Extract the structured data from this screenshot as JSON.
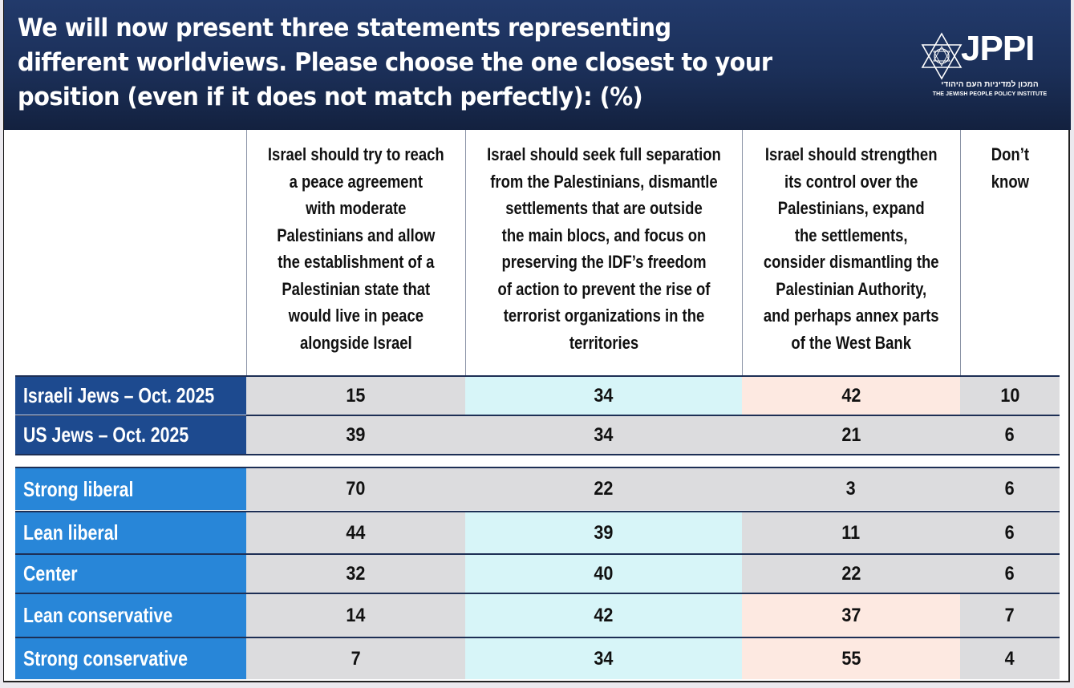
{
  "header": {
    "title": "We will now present three statements representing different worldviews. Please choose the one closest to your position (even if it does not match perfectly): (%)",
    "logo": {
      "icon": "star-of-david-icon",
      "name": "JPPI",
      "hebrew": "המכון למדיניות העם היהודי",
      "english": "THE JEWISH PEOPLE POLICY INSTITUTE"
    }
  },
  "colors": {
    "header_bg": "#1b2f58",
    "group_label_bg": "#1d4a8f",
    "ideology_label_bg": "#2886d8",
    "cell_gray": "#dcdcde",
    "cell_cyan": "#d7f5f8",
    "cell_peach": "#fde9e1"
  },
  "chart_data": {
    "type": "table",
    "title": "We will now present three statements representing different worldviews. Please choose the one closest to your position (even if it does not match perfectly): (%)",
    "columns": [
      "Israel should try to reach a peace agreement with moderate Palestinians and allow the establishment of a Palestinian state that would live in peace alongside Israel",
      "Israel should seek full separation from the Palestinians, dismantle settlements that are outside the main blocs, and focus on preserving the IDF’s freedom of action to prevent the rise of terrorist organizations in the territories",
      "Israel should strengthen its control over the Palestinians, expand the settlements, consider dismantling the Palestinian Authority, and perhaps annex parts of the West Bank",
      "Don’t know"
    ],
    "rows": [
      {
        "label": "Israeli Jews – Oct. 2025",
        "group": "population",
        "values": [
          15,
          34,
          42,
          10
        ],
        "highlight": [
          "gray",
          "cyan",
          "peach",
          "gray"
        ]
      },
      {
        "label": "US Jews – Oct. 2025",
        "group": "population",
        "values": [
          39,
          34,
          21,
          6
        ],
        "highlight": [
          "gray",
          "gray",
          "gray",
          "gray"
        ]
      },
      {
        "label": "Strong liberal",
        "group": "ideology",
        "values": [
          70,
          22,
          3,
          6
        ],
        "highlight": [
          "gray",
          "gray",
          "gray",
          "gray"
        ]
      },
      {
        "label": "Lean liberal",
        "group": "ideology",
        "values": [
          44,
          39,
          11,
          6
        ],
        "highlight": [
          "gray",
          "cyan",
          "gray",
          "gray"
        ]
      },
      {
        "label": "Center",
        "group": "ideology",
        "values": [
          32,
          40,
          22,
          6
        ],
        "highlight": [
          "gray",
          "cyan",
          "gray",
          "gray"
        ]
      },
      {
        "label": "Lean conservative",
        "group": "ideology",
        "values": [
          14,
          42,
          37,
          7
        ],
        "highlight": [
          "gray",
          "cyan",
          "peach",
          "gray"
        ]
      },
      {
        "label": "Strong conservative",
        "group": "ideology",
        "values": [
          7,
          34,
          55,
          4
        ],
        "highlight": [
          "gray",
          "cyan",
          "peach",
          "gray"
        ]
      }
    ]
  },
  "column_headers": [
    [
      "Israel should try to reach",
      "a peace agreement",
      "with moderate",
      "Palestinians and allow",
      "the establishment of a",
      "Palestinian state that",
      "would live in peace",
      "alongside Israel"
    ],
    [
      "Israel should seek full separation",
      "from the Palestinians, dismantle",
      "settlements that are outside",
      "the main blocs, and focus on",
      "preserving the IDF’s freedom",
      "of action to prevent the rise of",
      "terrorist organizations in the",
      "territories"
    ],
    [
      "Israel should strengthen",
      "its control over the",
      "Palestinians, expand",
      "the settlements,",
      "consider dismantling the",
      "Palestinian Authority,",
      "and perhaps annex parts",
      "of the West Bank"
    ],
    [
      "Don’t",
      "know"
    ]
  ]
}
